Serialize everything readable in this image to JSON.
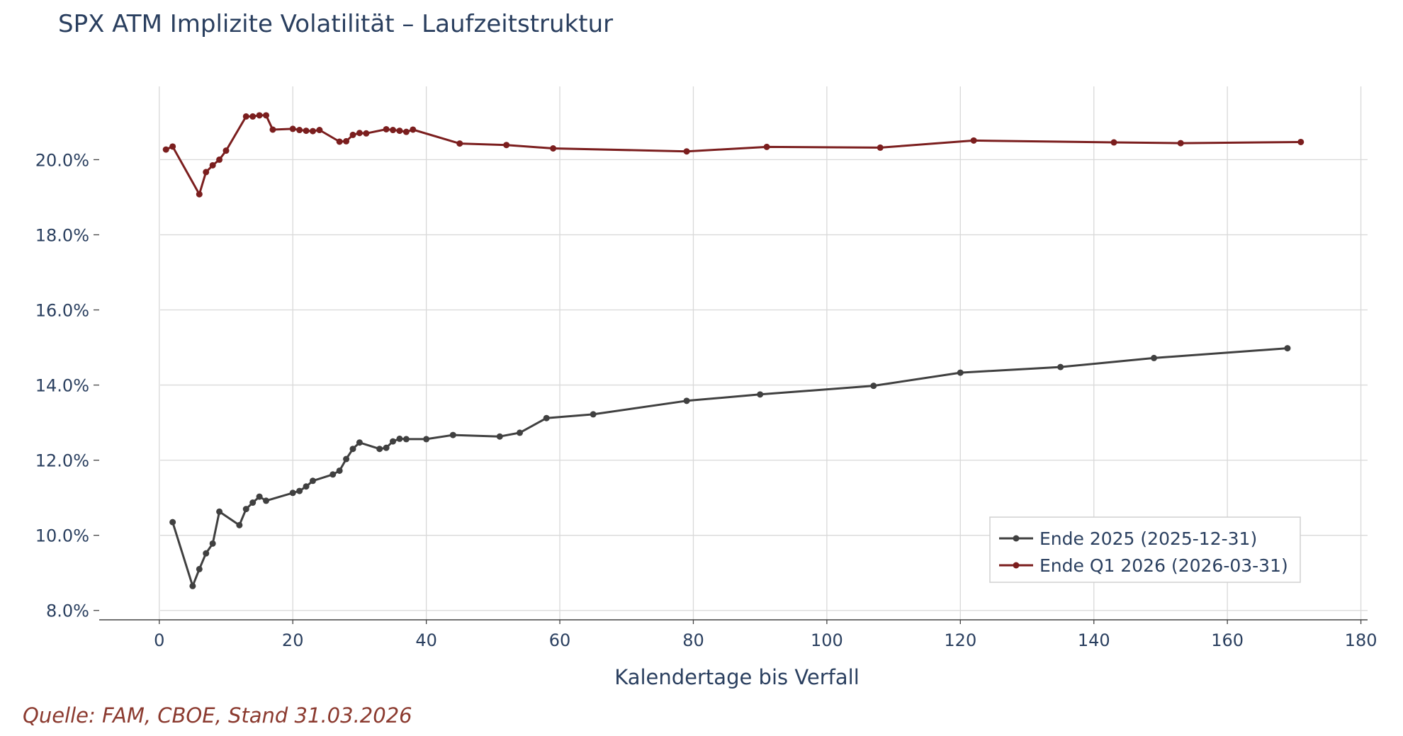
{
  "chart_data": {
    "type": "line",
    "title": "SPX ATM Implizite Volatilität – Laufzeitstruktur",
    "xlabel": "Kalendertage bis Verfall",
    "ylabel": "",
    "xlim": [
      -9,
      181
    ],
    "ylim": [
      7.75,
      21.95
    ],
    "xticks": [
      0,
      20,
      40,
      60,
      80,
      100,
      120,
      140,
      160,
      180
    ],
    "xtick_labels": [
      "0",
      "20",
      "40",
      "60",
      "80",
      "100",
      "120",
      "140",
      "160",
      "180"
    ],
    "yticks": [
      8,
      10,
      12,
      14,
      16,
      18,
      20
    ],
    "ytick_labels": [
      "8.0%",
      "10.0%",
      "12.0%",
      "14.0%",
      "16.0%",
      "18.0%",
      "20.0%"
    ],
    "grid": true,
    "legend_position": "bottom-right",
    "source_note": "Quelle: FAM, CBOE, Stand 31.03.2026",
    "series": [
      {
        "name": "Ende 2025 (2025-12-31)",
        "color": "#404040",
        "x": [
          2,
          5,
          6,
          7,
          8,
          9,
          12,
          13,
          14,
          15,
          16,
          20,
          21,
          22,
          23,
          26,
          27,
          28,
          29,
          30,
          33,
          34,
          35,
          36,
          37,
          40,
          44,
          51,
          54,
          58,
          65,
          79,
          90,
          107,
          120,
          135,
          149,
          169
        ],
        "y": [
          10.35,
          8.65,
          9.1,
          9.52,
          9.78,
          10.63,
          10.27,
          10.7,
          10.87,
          11.03,
          10.92,
          11.13,
          11.18,
          11.3,
          11.45,
          11.62,
          11.72,
          12.03,
          12.3,
          12.47,
          12.3,
          12.33,
          12.5,
          12.57,
          12.56,
          12.56,
          12.67,
          12.63,
          12.73,
          13.12,
          13.22,
          13.58,
          13.75,
          13.98,
          14.33,
          14.48,
          14.72,
          14.98
        ]
      },
      {
        "name": "Ende Q1 2026 (2026-03-31)",
        "color": "#7b1e1e",
        "x": [
          1,
          2,
          6,
          7,
          8,
          9,
          10,
          13,
          14,
          15,
          16,
          17,
          20,
          21,
          22,
          23,
          24,
          27,
          28,
          29,
          30,
          31,
          34,
          35,
          36,
          37,
          38,
          45,
          52,
          59,
          79,
          91,
          108,
          122,
          143,
          153,
          171
        ],
        "y": [
          20.27,
          20.35,
          19.08,
          19.67,
          19.85,
          20.0,
          20.24,
          21.15,
          21.15,
          21.18,
          21.18,
          20.8,
          20.82,
          20.79,
          20.77,
          20.76,
          20.79,
          20.48,
          20.49,
          20.66,
          20.71,
          20.7,
          20.81,
          20.79,
          20.77,
          20.74,
          20.8,
          20.43,
          20.39,
          20.3,
          20.22,
          20.34,
          20.32,
          20.51,
          20.46,
          20.44,
          20.47
        ]
      }
    ]
  }
}
